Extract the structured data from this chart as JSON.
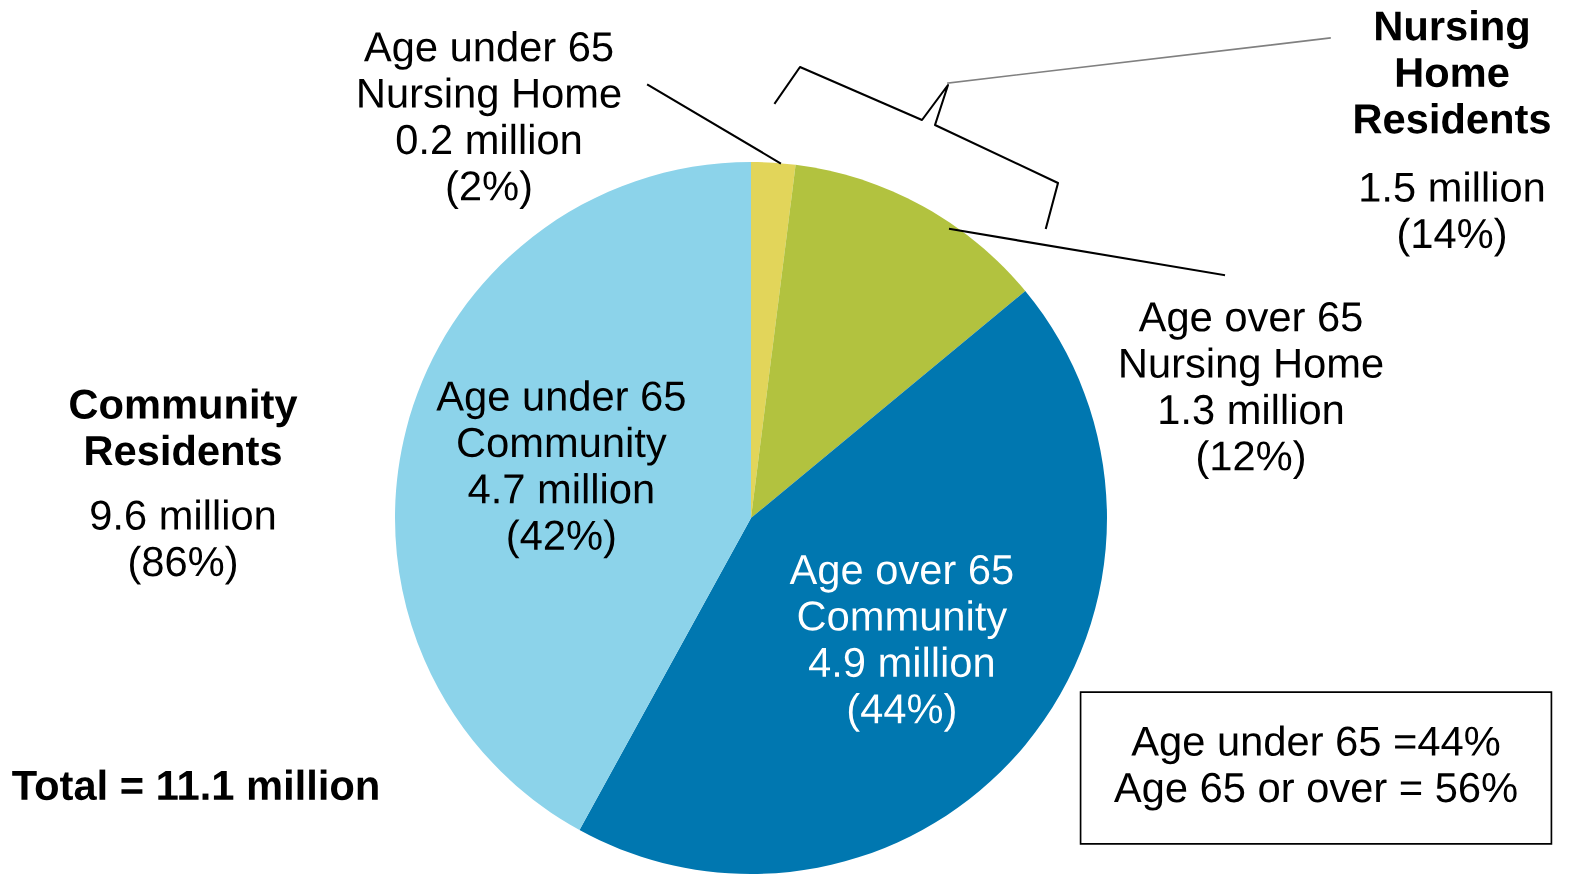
{
  "chart_data": {
    "type": "pie",
    "categories": [
      "Age under 65\nNursing Home",
      "Age over 65\nNursing Home",
      "Age over 65\nCommunity",
      "Age under 65\nCommunity"
    ],
    "values": [
      2,
      12,
      44,
      42
    ],
    "value_labels": [
      "0.2 million\n(2%)",
      "1.3 million\n(12%)",
      "4.9 million\n(44%)",
      "4.7 million\n(42%)"
    ],
    "colors": [
      "#e2d55a",
      "#b2c23f",
      "#0077b0",
      "#8cd3ea"
    ],
    "annotations": [
      "Nursing\nHome\nResidents",
      "1.5 million\n(14%)",
      "Community\nResidents",
      "9.6 million\n(86%)",
      "Total = 11.1 million",
      "Age under 65 =44%\nAge 65 or over = 56%"
    ],
    "legend": false
  }
}
